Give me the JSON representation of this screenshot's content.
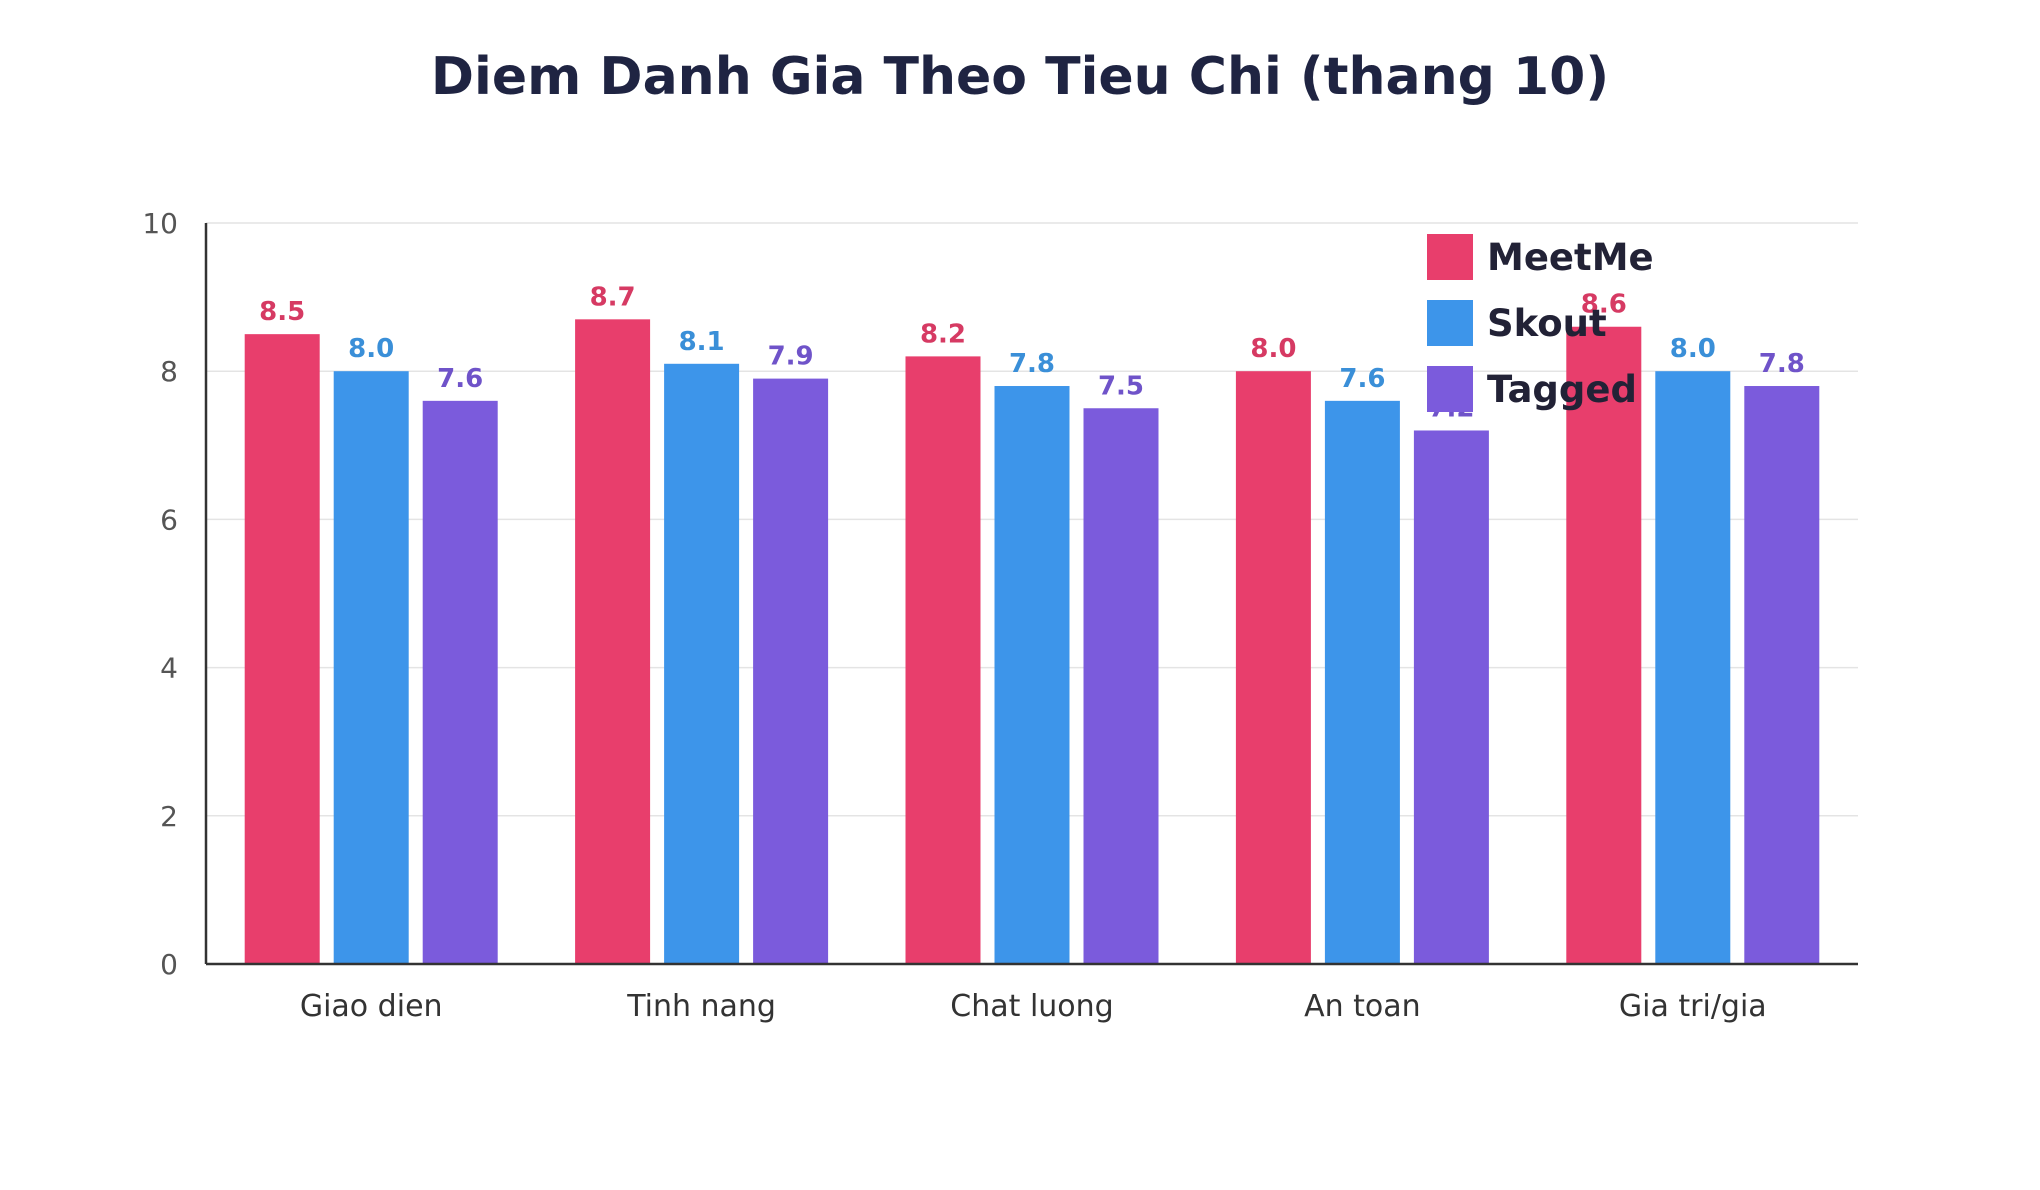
{
  "chart_data": {
    "type": "bar",
    "title": "Diem Danh Gia Theo Tieu Chi (thang 10)",
    "xlabel": "",
    "ylabel": "",
    "categories": [
      "Giao dien",
      "Tinh nang",
      "Chat luong",
      "An toan",
      "Gia tri/gia"
    ],
    "series": [
      {
        "name": "MeetMe",
        "color": "#e83e6c",
        "label_color": "#d63a63",
        "values": [
          8.5,
          8.7,
          8.2,
          8.0,
          8.6
        ]
      },
      {
        "name": "Skout",
        "color": "#3d95ea",
        "label_color": "#3a8fd8",
        "values": [
          8.0,
          8.1,
          7.8,
          7.6,
          8.0
        ]
      },
      {
        "name": "Tagged",
        "color": "#7b5bdc",
        "label_color": "#6f53c9",
        "values": [
          7.6,
          7.9,
          7.5,
          7.2,
          7.8
        ]
      }
    ],
    "ylim": [
      0,
      10
    ],
    "yticks": [
      "0",
      "2",
      "4",
      "6",
      "8",
      "10"
    ],
    "grid": true,
    "legend_position": "top-right"
  }
}
